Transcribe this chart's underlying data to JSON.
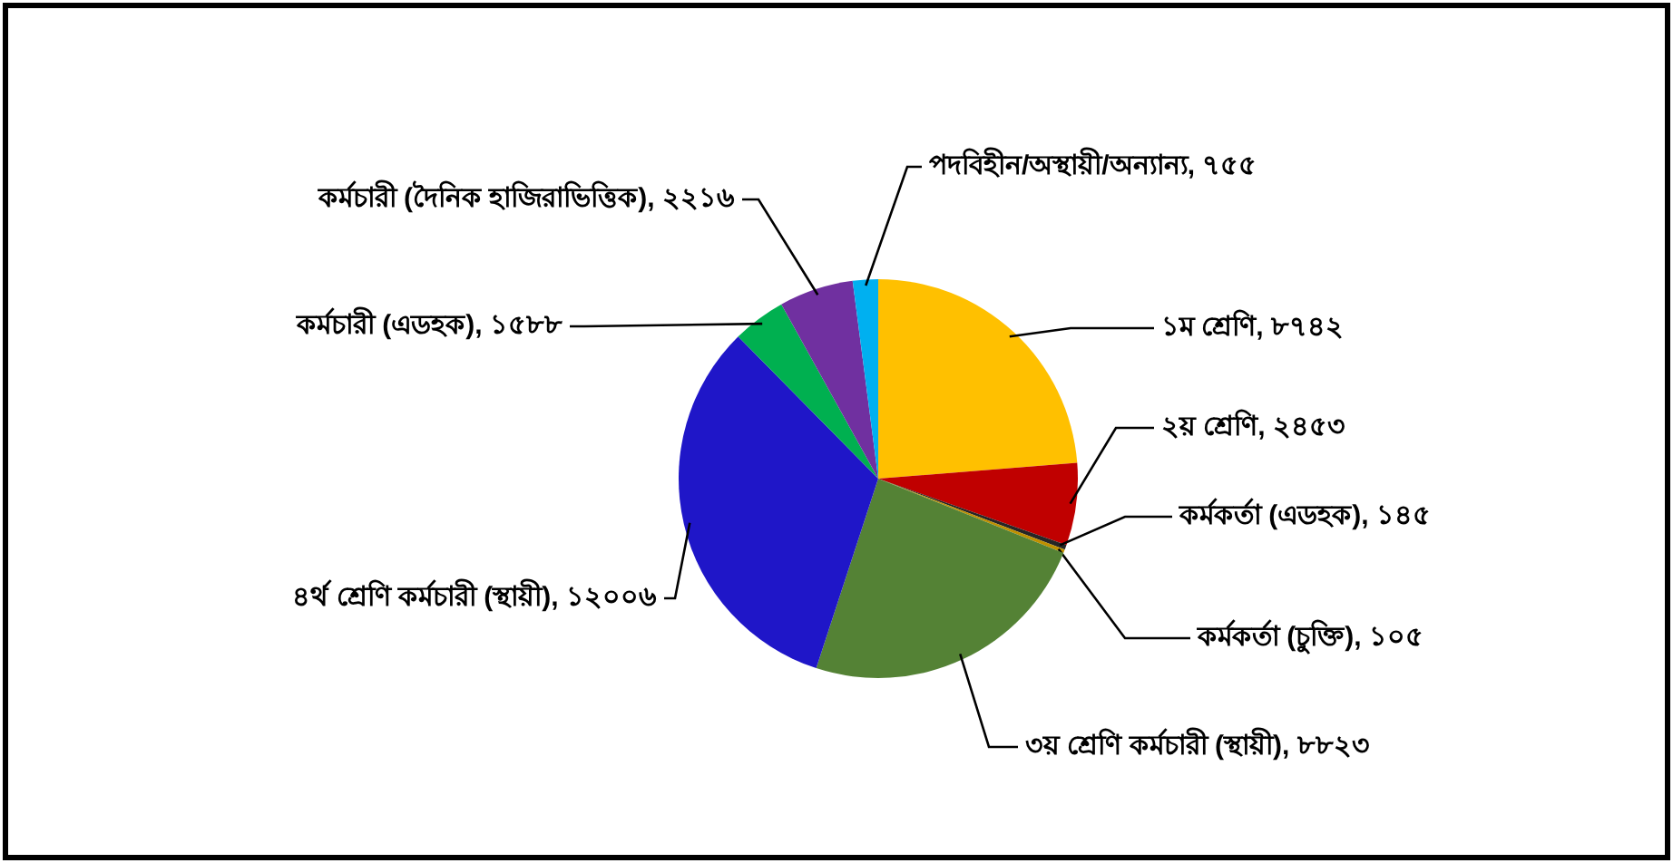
{
  "chart_data": {
    "type": "pie",
    "categories": [
      "১ম শ্রেণি",
      "২য় শ্রেণি",
      "কর্মকর্তা (এডহক)",
      "কর্মকর্তা (চুক্তি)",
      "৩য় শ্রেণি কর্মচারী (স্থায়ী)",
      "৪র্থ শ্রেণি কর্মচারী (স্থায়ী)",
      "কর্মচারী (এডহক)",
      "কর্মচারী (দৈনিক হাজিরাভিত্তিক)",
      "পদবিহীন/অস্থায়ী/অন্যান্য"
    ],
    "values": [
      8742,
      2453,
      145,
      105,
      8823,
      12006,
      1588,
      2216,
      755
    ],
    "value_labels": [
      "৮৭৪২",
      "২৪৫৩",
      "১৪৫",
      "১০৫",
      "৮৮২৩",
      "১২০০৬",
      "১৫৮৮",
      "২২১৬",
      "৭৫৫"
    ],
    "colors": [
      "#ffc000",
      "#c00000",
      "#262626",
      "#bf9000",
      "#548235",
      "#1f16c8",
      "#00b050",
      "#7030a0",
      "#00b0f0"
    ]
  }
}
